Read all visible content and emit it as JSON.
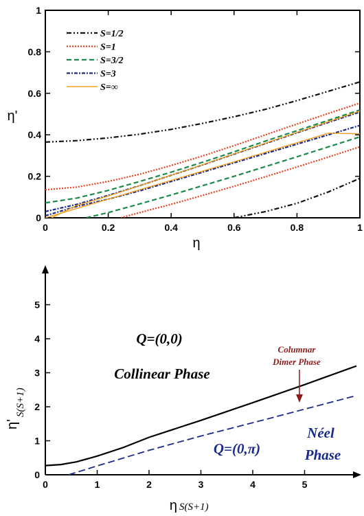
{
  "chart_data": [
    {
      "type": "line",
      "xlabel": "η",
      "ylabel": "η'",
      "xlim": [
        0,
        1
      ],
      "ylim": [
        0,
        1
      ],
      "xticks": [
        "0",
        "0.2",
        "0.4",
        "0.6",
        "0.8",
        "1"
      ],
      "yticks": [
        "0",
        "0.2",
        "0.4",
        "0.6",
        "0.8",
        "1"
      ],
      "legend_position": "top-left",
      "colors": {
        "S=1/2": "#111111",
        "S=1": "#e8401c",
        "S=3/2": "#1a8a4a",
        "S=3": "#1a2a8c",
        "S=∞": "#f0a020"
      },
      "series": [
        {
          "name": "S=1/2",
          "branch": "upper",
          "x": [
            0,
            0.1,
            0.2,
            0.3,
            0.4,
            0.5,
            0.6,
            0.7,
            0.8,
            0.9,
            1.0
          ],
          "y": [
            0.365,
            0.372,
            0.385,
            0.403,
            0.426,
            0.455,
            0.487,
            0.523,
            0.565,
            0.61,
            0.655
          ]
        },
        {
          "name": "S=1/2",
          "branch": "lower",
          "x": [
            0.6,
            0.7,
            0.8,
            0.9,
            1.0
          ],
          "y": [
            0.0,
            0.03,
            0.07,
            0.125,
            0.19
          ]
        },
        {
          "name": "S=1",
          "branch": "upper",
          "x": [
            0,
            0.1,
            0.2,
            0.3,
            0.4,
            0.5,
            0.6,
            0.7,
            0.8,
            0.9,
            1.0
          ],
          "y": [
            0.135,
            0.148,
            0.175,
            0.21,
            0.252,
            0.298,
            0.348,
            0.4,
            0.452,
            0.503,
            0.553
          ]
        },
        {
          "name": "S=1",
          "branch": "lower",
          "x": [
            0.24,
            0.3,
            0.4,
            0.5,
            0.6,
            0.7,
            0.8,
            0.9,
            1.0
          ],
          "y": [
            0.0,
            0.025,
            0.065,
            0.108,
            0.152,
            0.198,
            0.245,
            0.293,
            0.342
          ]
        },
        {
          "name": "S=3/2",
          "branch": "upper",
          "x": [
            0,
            0.1,
            0.2,
            0.3,
            0.4,
            0.5,
            0.6,
            0.7,
            0.8,
            0.9,
            1.0
          ],
          "y": [
            0.072,
            0.095,
            0.132,
            0.175,
            0.22,
            0.268,
            0.318,
            0.37,
            0.42,
            0.47,
            0.52
          ]
        },
        {
          "name": "S=3/2",
          "branch": "lower",
          "x": [
            0.13,
            0.2,
            0.3,
            0.4,
            0.5,
            0.6,
            0.7,
            0.8,
            0.9,
            1.0
          ],
          "y": [
            0.0,
            0.025,
            0.067,
            0.11,
            0.155,
            0.2,
            0.247,
            0.294,
            0.342,
            0.39
          ]
        },
        {
          "name": "S=3",
          "branch": "upper",
          "x": [
            0,
            0.1,
            0.2,
            0.3,
            0.4,
            0.5,
            0.6,
            0.7,
            0.8,
            0.9,
            1.0
          ],
          "y": [
            0.03,
            0.065,
            0.108,
            0.155,
            0.205,
            0.255,
            0.307,
            0.358,
            0.41,
            0.46,
            0.51
          ]
        },
        {
          "name": "S=3",
          "branch": "lower",
          "x": [
            0.0,
            0.1,
            0.2,
            0.3,
            0.4,
            0.5,
            0.6,
            0.7,
            0.8,
            0.9,
            1.0
          ],
          "y": [
            0.01,
            0.055,
            0.09,
            0.13,
            0.175,
            0.22,
            0.265,
            0.31,
            0.355,
            0.4,
            0.445
          ]
        },
        {
          "name": "S=∞",
          "branch": "upper",
          "x": [
            0.02,
            0.1,
            0.2,
            0.3,
            0.4,
            0.5,
            0.6,
            0.7,
            0.8,
            0.9,
            1.0
          ],
          "y": [
            0.0,
            0.06,
            0.105,
            0.155,
            0.205,
            0.256,
            0.308,
            0.36,
            0.412,
            0.463,
            0.515
          ]
        },
        {
          "name": "S=∞",
          "branch": "lower",
          "x": [
            0.0,
            0.1,
            0.2,
            0.3,
            0.4,
            0.5,
            0.6,
            0.7,
            0.8,
            0.9,
            1.0
          ],
          "y": [
            0.0,
            0.045,
            0.09,
            0.135,
            0.18,
            0.225,
            0.27,
            0.316,
            0.362,
            0.408,
            0.405
          ]
        }
      ]
    },
    {
      "type": "line",
      "xlabel": "η",
      "xlabel_sub": "S(S+1)",
      "ylabel": "η'",
      "ylabel_sub": "S(S+1)",
      "xlim": [
        0,
        6
      ],
      "ylim": [
        0,
        6
      ],
      "xticks": [
        "0",
        "1",
        "2",
        "3",
        "4",
        "5"
      ],
      "yticks": [
        "0",
        "1",
        "2",
        "3",
        "4",
        "5"
      ],
      "series": [
        {
          "name": "",
          "color": "#000000",
          "x": [
            0,
            0.3,
            0.6,
            1.0,
            1.5,
            2.0,
            3.0,
            4.0,
            5.0,
            6.0
          ],
          "y": [
            0.27,
            0.3,
            0.38,
            0.55,
            0.8,
            1.1,
            1.6,
            2.12,
            2.65,
            3.2
          ]
        },
        {
          "name": "",
          "color": "#1a2a8c",
          "x": [
            0.45,
            1.0,
            2.0,
            3.0,
            4.0,
            5.0,
            6.0
          ],
          "y": [
            0.0,
            0.26,
            0.72,
            1.14,
            1.53,
            1.93,
            2.33
          ]
        }
      ],
      "annotations": {
        "q00": "Q=(0,0)",
        "collinear": "Collinear Phase",
        "columnar1": "Columnar",
        "columnar2": "Dimer Phase",
        "neel1": "Néel",
        "neel2": "Phase",
        "q0pi": "Q=(0,π)"
      },
      "annotation_colors": {
        "columnar": "#8b1a1a",
        "neel": "#1a2a8c"
      }
    }
  ]
}
